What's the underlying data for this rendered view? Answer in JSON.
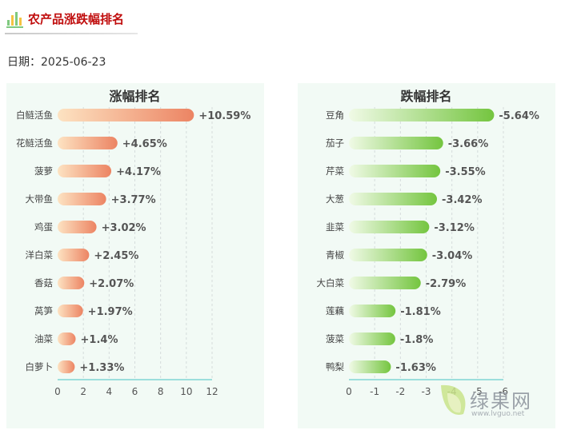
{
  "header": {
    "title": "农产品涨跌幅排名"
  },
  "date": {
    "text": "日期：2025-06-23"
  },
  "watermark": {
    "text": "绿果网",
    "url": "www.lvguo.net"
  },
  "colors": {
    "up_start": "#fde3c2",
    "up_end": "#ec8463",
    "down_start": "#f0fae6",
    "down_end": "#74c53f",
    "axis": "#7fd4d4",
    "grid": "#d5dcdc",
    "panel_bg": "#f2faf5"
  },
  "chart_data": [
    {
      "type": "bar",
      "orientation": "horizontal",
      "title": "涨幅排名",
      "categories": [
        "白鲢活鱼",
        "花鲢活鱼",
        "菠萝",
        "大带鱼",
        "鸡蛋",
        "洋白菜",
        "香菇",
        "莴笋",
        "油菜",
        "白萝卜"
      ],
      "values": [
        10.59,
        4.65,
        4.17,
        3.77,
        3.02,
        2.45,
        2.07,
        1.97,
        1.4,
        1.33
      ],
      "labels": [
        "+10.59%",
        "+4.65%",
        "+4.17%",
        "+3.77%",
        "+3.02%",
        "+2.45%",
        "+2.07%",
        "+1.97%",
        "+1.4%",
        "+1.33%"
      ],
      "xlim": [
        0,
        12
      ],
      "xticks": [
        "0",
        "2",
        "4",
        "6",
        "8",
        "10",
        "12"
      ],
      "xtick_values": [
        0,
        2,
        4,
        6,
        8,
        10,
        12
      ],
      "grid": true
    },
    {
      "type": "bar",
      "orientation": "horizontal",
      "title": "跌幅排名",
      "categories": [
        "豆角",
        "茄子",
        "芹菜",
        "大葱",
        "韭菜",
        "青椒",
        "大白菜",
        "莲藕",
        "菠菜",
        "鸭梨"
      ],
      "values": [
        -5.64,
        -3.66,
        -3.55,
        -3.42,
        -3.12,
        -3.04,
        -2.79,
        -1.81,
        -1.8,
        -1.63
      ],
      "labels": [
        "-5.64%",
        "-3.66%",
        "-3.55%",
        "-3.42%",
        "-3.12%",
        "-3.04%",
        "-2.79%",
        "-1.81%",
        "-1.8%",
        "-1.63%"
      ],
      "xlim": [
        0,
        -6
      ],
      "xticks": [
        "0",
        "-1",
        "-2",
        "-3",
        "-4",
        "-5",
        "-6"
      ],
      "xtick_values": [
        0,
        -1,
        -2,
        -3,
        -4,
        -5,
        -6
      ],
      "grid": true
    }
  ]
}
